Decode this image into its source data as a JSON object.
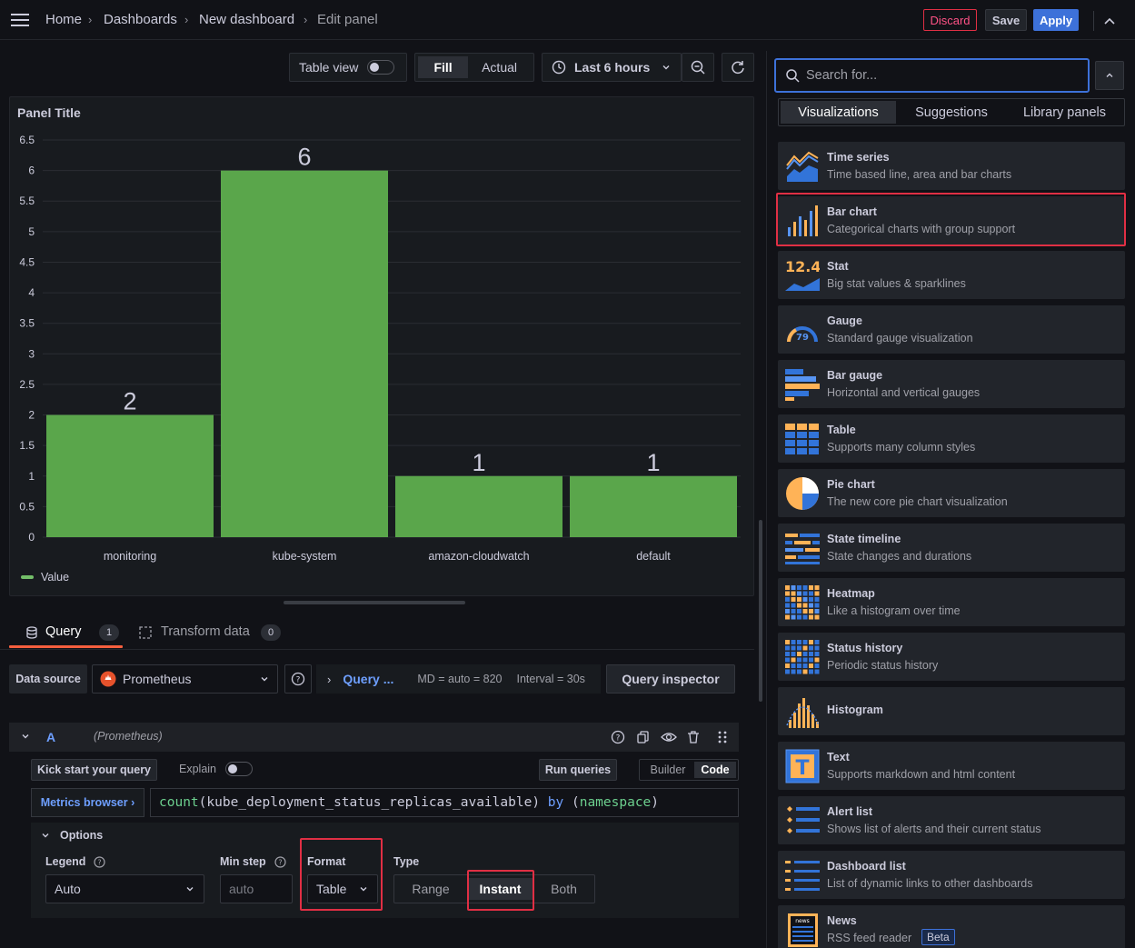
{
  "breadcrumb": [
    "Home",
    "Dashboards",
    "New dashboard",
    "Edit panel"
  ],
  "topbar": {
    "discard": "Discard",
    "save": "Save",
    "apply": "Apply"
  },
  "toolbar": {
    "table_view": "Table view",
    "fill": "Fill",
    "actual": "Actual",
    "time_range": "Last 6 hours"
  },
  "panel": {
    "title": "Panel Title",
    "legend": "Value",
    "legend_color": "#73bf69"
  },
  "chart_data": {
    "type": "bar",
    "categories": [
      "monitoring",
      "kube-system",
      "amazon-cloudwatch",
      "default"
    ],
    "values": [
      2,
      6,
      1,
      1
    ],
    "ylim": [
      0,
      6.5
    ],
    "yticks": [
      "0",
      "0.5",
      "1",
      "1.5",
      "2",
      "2.5",
      "3",
      "3.5",
      "4",
      "4.5",
      "5",
      "5.5",
      "6",
      "6.5"
    ],
    "series": [
      {
        "name": "Value",
        "values": [
          2,
          6,
          1,
          1
        ]
      }
    ],
    "bar_color": "#5aa64b",
    "legend_position": "bottom-left"
  },
  "tabs": {
    "query": "Query",
    "query_count": "1",
    "transform": "Transform data",
    "transform_count": "0"
  },
  "query_options": {
    "data_source_label": "Data source",
    "data_source": "Prometheus",
    "query_link": "Query ...",
    "md": "MD = auto = 820",
    "interval": "Interval = 30s",
    "inspector": "Query inspector"
  },
  "query_row": {
    "ref": "A",
    "ds": "(Prometheus)",
    "kick_start": "Kick start your query",
    "explain": "Explain",
    "run_queries": "Run queries",
    "builder": "Builder",
    "code": "Code",
    "metrics_browser": "Metrics browser ›",
    "expr_fn": "count",
    "expr_open": "(",
    "expr_metric": "kube_deployment_status_replicas_available",
    "expr_close": ")",
    "expr_by": "by",
    "expr_lbl_open": "(",
    "expr_label": "namespace",
    "expr_lbl_close": ")",
    "options": "Options",
    "legend_label": "Legend",
    "legend_value": "Auto",
    "min_step_label": "Min step",
    "min_step_placeholder": "auto",
    "format_label": "Format",
    "format_value": "Table",
    "type_label": "Type",
    "type_range": "Range",
    "type_instant": "Instant",
    "type_both": "Both"
  },
  "sidebar": {
    "search_placeholder": "Search for...",
    "tabs": [
      "Visualizations",
      "Suggestions",
      "Library panels"
    ],
    "items": [
      {
        "title": "Time series",
        "desc": "Time based line, area and bar charts",
        "icon": "time-series-icon"
      },
      {
        "title": "Bar chart",
        "desc": "Categorical charts with group support",
        "icon": "bar-chart-icon"
      },
      {
        "title": "Stat",
        "desc": "Big stat values & sparklines",
        "icon": "stat-icon",
        "icon_text": "12.4"
      },
      {
        "title": "Gauge",
        "desc": "Standard gauge visualization",
        "icon": "gauge-icon",
        "icon_text": "79"
      },
      {
        "title": "Bar gauge",
        "desc": "Horizontal and vertical gauges",
        "icon": "bar-gauge-icon"
      },
      {
        "title": "Table",
        "desc": "Supports many column styles",
        "icon": "table-icon"
      },
      {
        "title": "Pie chart",
        "desc": "The new core pie chart visualization",
        "icon": "pie-chart-icon"
      },
      {
        "title": "State timeline",
        "desc": "State changes and durations",
        "icon": "state-timeline-icon"
      },
      {
        "title": "Heatmap",
        "desc": "Like a histogram over time",
        "icon": "heatmap-icon"
      },
      {
        "title": "Status history",
        "desc": "Periodic status history",
        "icon": "status-history-icon"
      },
      {
        "title": "Histogram",
        "desc": "",
        "icon": "histogram-icon"
      },
      {
        "title": "Text",
        "desc": "Supports markdown and html content",
        "icon": "text-icon",
        "icon_text": "T"
      },
      {
        "title": "Alert list",
        "desc": "Shows list of alerts and their current status",
        "icon": "alert-list-icon"
      },
      {
        "title": "Dashboard list",
        "desc": "List of dynamic links to other dashboards",
        "icon": "dashboard-list-icon"
      },
      {
        "title": "News",
        "desc": "RSS feed reader",
        "icon": "news-icon",
        "icon_text": "news",
        "badge": "Beta"
      }
    ]
  }
}
